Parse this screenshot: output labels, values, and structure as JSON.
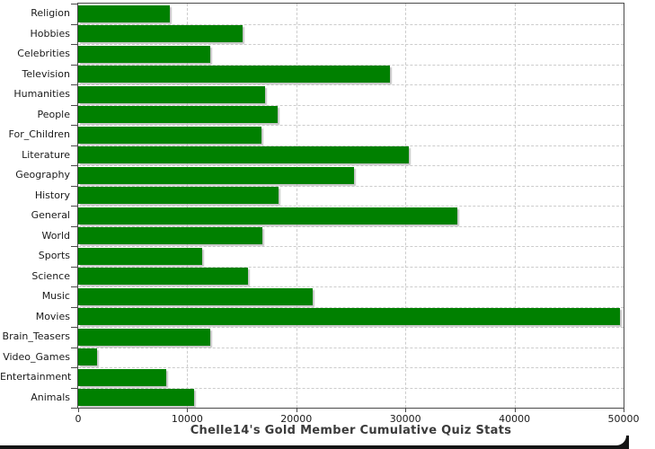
{
  "title": "Chelle14's Gold Member Cumulative Quiz Stats",
  "chart_data": {
    "type": "bar",
    "orientation": "horizontal",
    "title": "Chelle14's Gold Member Cumulative Quiz Stats",
    "xlabel": "",
    "ylabel": "",
    "categories": [
      "Religion",
      "Hobbies",
      "Celebrities",
      "Television",
      "Humanities",
      "People",
      "For_Children",
      "Literature",
      "Geography",
      "History",
      "General",
      "World",
      "Sports",
      "Science",
      "Music",
      "Movies",
      "Brain_Teasers",
      "Video_Games",
      "Entertainment",
      "Animals"
    ],
    "values": [
      8400,
      15100,
      12100,
      28600,
      17100,
      18300,
      16800,
      30300,
      25300,
      18400,
      34800,
      16900,
      11400,
      15600,
      21500,
      49700,
      12100,
      1700,
      8100,
      10600
    ],
    "xlim": [
      0,
      50000
    ],
    "x_ticks": [
      0,
      10000,
      20000,
      30000,
      40000,
      50000
    ],
    "x_tick_labels": [
      "0",
      "10000",
      "20000",
      "30000",
      "40000",
      "50000"
    ],
    "grid": "dashed, vertical at each x tick and horizontal at each category boundary",
    "legend": "none",
    "colors": {
      "bar": "#008000",
      "bar_shadow": "#c8c8c8",
      "gridline": "#cccccc",
      "frame": "#4a4a4a",
      "plot_background": "#ffffff",
      "page_background": "#ffffff",
      "title_text": "#3b3b3b",
      "tick_text": "#1a1a1a",
      "bottom_border": "#141414"
    }
  }
}
